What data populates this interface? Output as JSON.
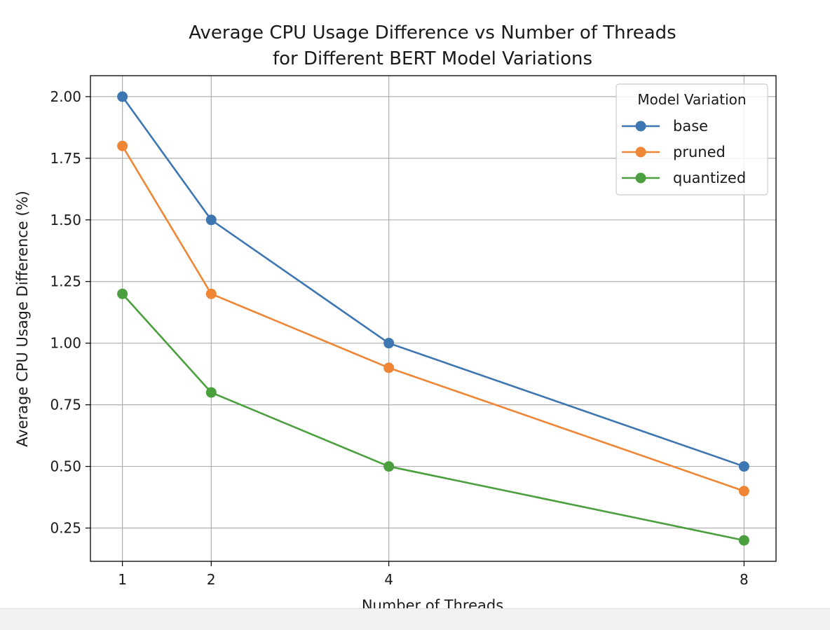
{
  "chart_data": {
    "type": "line",
    "title": "Average CPU Usage Difference vs Number of Threads",
    "subtitle": "for Different BERT Model Variations",
    "xlabel": "Number of Threads",
    "ylabel": "Average CPU Usage Difference (%)",
    "x": [
      1,
      2,
      4,
      8
    ],
    "x_ticks": [
      "1",
      "2",
      "4",
      "8"
    ],
    "xlim": [
      0.64,
      8.36
    ],
    "ylim": [
      0.115,
      2.085
    ],
    "y_ticks": [
      0.25,
      0.5,
      0.75,
      1.0,
      1.25,
      1.5,
      1.75,
      2.0
    ],
    "y_tick_labels": [
      "0.25",
      "0.50",
      "0.75",
      "1.00",
      "1.25",
      "1.50",
      "1.75",
      "2.00"
    ],
    "grid": true,
    "legend": {
      "title": "Model Variation",
      "position": "top-right"
    },
    "series": [
      {
        "name": "base",
        "color": "#3d76b1",
        "values": [
          2.0,
          1.5,
          1.0,
          0.5
        ]
      },
      {
        "name": "pruned",
        "color": "#ef8636",
        "values": [
          1.8,
          1.2,
          0.9,
          0.4
        ]
      },
      {
        "name": "quantized",
        "color": "#4c9f3f",
        "values": [
          1.2,
          0.8,
          0.5,
          0.2
        ]
      }
    ]
  }
}
